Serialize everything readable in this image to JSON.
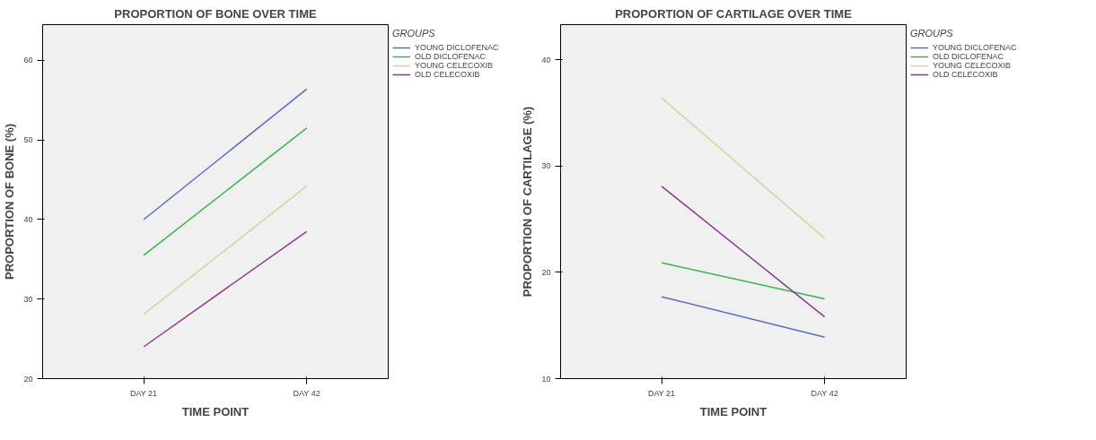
{
  "chart_data": [
    {
      "type": "line",
      "title": "PROPORTION OF BONE OVER TIME",
      "xlabel": "TIME POINT",
      "ylabel": "PROPORTION OF BONE (%)",
      "legend_title": "GROUPS",
      "legend": "top right",
      "grid": false,
      "categories": [
        "DAY 21",
        "DAY 42"
      ],
      "ylim": [
        20,
        64.5
      ],
      "yticks": [
        20,
        30,
        40,
        50,
        60
      ],
      "series": [
        {
          "name": "YOUNG DICLOFENAC",
          "color": "#5b6bbf",
          "values": [
            40.0,
            56.4
          ]
        },
        {
          "name": "OLD DICLOFENAC",
          "color": "#3cb44b",
          "values": [
            35.5,
            51.5
          ]
        },
        {
          "name": "YOUNG CELECOXIB",
          "color": "#d4d49a",
          "values": [
            28.1,
            44.2
          ]
        },
        {
          "name": "OLD CELECOXIB",
          "color": "#8e3a8e",
          "values": [
            24.0,
            38.5
          ]
        }
      ]
    },
    {
      "type": "line",
      "title": "PROPORTION OF CARTILAGE OVER TIME",
      "xlabel": "TIME POINT",
      "ylabel": "PROPORTION OF CARTILAGE (%)",
      "legend_title": "GROUPS",
      "legend": "top right",
      "grid": false,
      "categories": [
        "DAY 21",
        "DAY 42"
      ],
      "ylim": [
        10,
        43.3
      ],
      "yticks": [
        10,
        20,
        30,
        40
      ],
      "series": [
        {
          "name": "YOUNG DICLOFENAC",
          "color": "#5b6bbf",
          "values": [
            17.7,
            13.9
          ]
        },
        {
          "name": "OLD DICLOFENAC",
          "color": "#3cb44b",
          "values": [
            20.9,
            17.5
          ]
        },
        {
          "name": "YOUNG CELECOXIB",
          "color": "#d4d49a",
          "values": [
            36.4,
            23.2
          ]
        },
        {
          "name": "OLD CELECOXIB",
          "color": "#8e3a8e",
          "values": [
            28.1,
            15.8
          ]
        }
      ]
    }
  ]
}
